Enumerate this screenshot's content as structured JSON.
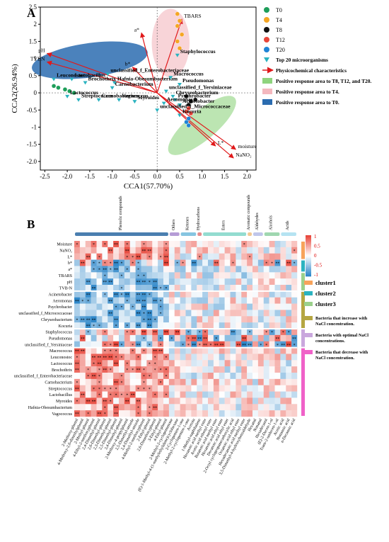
{
  "figure": {
    "panel_a_letter": "A",
    "panel_b_letter": "B"
  },
  "chart_data": [
    {
      "type": "scatter",
      "panel": "A",
      "xlabel": "CCA1(57.70%)",
      "ylabel": "CCA2(26.94%)",
      "xlim": [
        -2.6,
        2.2
      ],
      "ylim": [
        -2.25,
        2.5
      ],
      "xticks": [
        -2.5,
        -2.0,
        -1.5,
        -1.0,
        -0.5,
        0.0,
        0.5,
        1.0,
        1.5,
        2.0
      ],
      "yticks": [
        -2.0,
        -1.5,
        -1.0,
        -0.5,
        0.0,
        0.5,
        1.0,
        1.5,
        2.0,
        2.5
      ],
      "x_tick_labels": [
        "-2.5",
        "-2.0",
        "-1.5",
        "-1.0",
        "-0.5",
        "0.0",
        "0.5",
        "1.0",
        "1.5",
        "2.0"
      ],
      "y_tick_labels": [
        "-2.0",
        "-1.5",
        "-1",
        "-0.5",
        "0",
        "0.5",
        "1",
        "1.5",
        "2",
        "2.5"
      ],
      "ellipses": [
        {
          "name": "Positive response area to T4.",
          "color": "#f4b8be",
          "cx": 0.3,
          "cy": 1.45,
          "rx": 0.42,
          "ry": 1.0,
          "angle": 0
        },
        {
          "name": "Positive response area to T0.",
          "color": "#2b6cb0",
          "cx": -1.5,
          "cy": 0.95,
          "rx": 1.3,
          "ry": 0.5,
          "angle": -8
        },
        {
          "name": "Positive response area to T8, T12, and T20.",
          "color": "#8fd47e",
          "cx": 1.0,
          "cy": -0.95,
          "rx": 0.95,
          "ry": 0.42,
          "angle": -40
        }
      ],
      "sample_points": [
        {
          "group": "T0",
          "color": "#1e9e5a",
          "points": [
            [
              -2.3,
              0.2
            ],
            [
              -2.05,
              0.1
            ],
            [
              -1.95,
              0.05
            ],
            [
              -2.2,
              0.15
            ],
            [
              -1.85,
              0.0
            ]
          ]
        },
        {
          "group": "T4",
          "color": "#f5a623",
          "points": [
            [
              0.45,
              2.3
            ],
            [
              0.5,
              2.1
            ],
            [
              0.45,
              1.95
            ],
            [
              0.55,
              1.7
            ],
            [
              0.45,
              1.5
            ],
            [
              0.5,
              1.3
            ]
          ]
        },
        {
          "group": "T8",
          "color": "#111111",
          "points": [
            [
              0.65,
              -0.1
            ],
            [
              0.75,
              -0.25
            ],
            [
              0.7,
              -0.35
            ],
            [
              0.85,
              -0.2
            ]
          ]
        },
        {
          "group": "T12",
          "color": "#e8463a",
          "points": [
            [
              0.7,
              -0.45
            ],
            [
              0.65,
              -0.55
            ],
            [
              0.75,
              -0.6
            ]
          ]
        },
        {
          "group": "T20",
          "color": "#1f84d6",
          "points": [
            [
              0.7,
              -0.75
            ],
            [
              0.65,
              -0.85
            ],
            [
              0.7,
              -0.95
            ]
          ]
        }
      ],
      "microorganisms": [
        {
          "name": "Staphylococcus",
          "x": 0.45,
          "y": 1.1
        },
        {
          "name": "unclassified_f_Enterobacteriaceae",
          "x": -1.1,
          "y": 0.55
        },
        {
          "name": "Hafnia-Obesumbacterium",
          "x": -0.95,
          "y": 0.3
        },
        {
          "name": "Carnobacterium",
          "x": -1.0,
          "y": 0.15
        },
        {
          "name": "Lactobacillus",
          "x": -1.9,
          "y": 0.4
        },
        {
          "name": "Leuconostoc",
          "x": -2.3,
          "y": 0.4
        },
        {
          "name": "Brochothrix",
          "x": -1.6,
          "y": 0.3
        },
        {
          "name": "Lactococcus",
          "x": -2.0,
          "y": -0.1
        },
        {
          "name": "Streptococcus",
          "x": -1.75,
          "y": -0.2
        },
        {
          "name": "Carnobacterium",
          "x": -1.3,
          "y": -0.2
        },
        {
          "name": "Vagococcus",
          "x": -0.85,
          "y": -0.2
        },
        {
          "name": "Myroides",
          "x": -0.5,
          "y": -0.25
        },
        {
          "name": "Macrococcus",
          "x": 0.3,
          "y": 0.45
        },
        {
          "name": "Pseudomonas",
          "x": 0.5,
          "y": 0.25
        },
        {
          "name": "unclassified_f_Yersiniaceae",
          "x": 0.2,
          "y": 0.05
        },
        {
          "name": "Chryseobacterium",
          "x": 0.35,
          "y": -0.1
        },
        {
          "name": "Psychrobacter",
          "x": 0.4,
          "y": -0.2
        },
        {
          "name": "Aeromonas",
          "x": 0.15,
          "y": -0.3
        },
        {
          "name": "Acinetobacter",
          "x": 0.5,
          "y": -0.35
        },
        {
          "name": "unclassified_f_Micrococcaceae",
          "x": 0.0,
          "y": -0.5
        },
        {
          "name": "Kocuria",
          "x": 0.5,
          "y": -0.65
        }
      ],
      "physicochemical_arrows": [
        {
          "name": "TBARS",
          "x": 0.55,
          "y": 2.15
        },
        {
          "name": "a*",
          "x": -0.35,
          "y": 1.75
        },
        {
          "name": "b*",
          "x": -0.55,
          "y": 0.75
        },
        {
          "name": "pH",
          "x": -2.45,
          "y": 1.15
        },
        {
          "name": "TVBN",
          "x": -2.45,
          "y": 0.9
        },
        {
          "name": "L*",
          "x": 1.3,
          "y": -1.55
        },
        {
          "name": "moisture",
          "x": 1.75,
          "y": -1.65
        },
        {
          "name": "NaNO₂",
          "x": 1.7,
          "y": -1.9
        }
      ],
      "legend": {
        "placement": "right",
        "items": [
          {
            "label": "T0",
            "symbol": "circle",
            "color": "#1e9e5a"
          },
          {
            "label": "T4",
            "symbol": "circle",
            "color": "#f5a623"
          },
          {
            "label": "T8",
            "symbol": "circle",
            "color": "#111111"
          },
          {
            "label": "T12",
            "symbol": "circle",
            "color": "#e8463a"
          },
          {
            "label": "T20",
            "symbol": "circle",
            "color": "#1f84d6"
          },
          {
            "label": "Top 20 microorganisms",
            "symbol": "triangle",
            "color": "#2bb3c0"
          },
          {
            "label": "Physicochemical characteristics",
            "symbol": "arrow",
            "color": "#e0191b"
          },
          {
            "label": "Positive response area to T8, T12, and T20.",
            "symbol": "rect",
            "color": "#8fd47e"
          },
          {
            "label": "Positive response area to T4.",
            "symbol": "rect",
            "color": "#f4b8be"
          },
          {
            "label": "Positive response area to T0.",
            "symbol": "rect",
            "color": "#2b6cb0"
          }
        ]
      }
    },
    {
      "type": "heatmap",
      "panel": "B",
      "color_scale": {
        "min": -1,
        "max": 1,
        "ticks": [
          "1",
          "0.5",
          "0",
          "-0.5",
          "-1"
        ],
        "high_color": "#e8463a",
        "mid_color": "#ffffff",
        "low_color": "#2c86c9"
      },
      "column_groups": [
        {
          "name": "Phenolic compounds",
          "color": "#4a7fb0",
          "count": 17
        },
        {
          "name": "Others",
          "color": "#b59cd6",
          "count": 2
        },
        {
          "name": "Ketones",
          "color": "#86c5e0",
          "count": 3
        },
        {
          "name": "Hydrocarbons",
          "color": "#e58d8d",
          "count": 1
        },
        {
          "name": "Esters",
          "color": "#93dcd0",
          "count": 8
        },
        {
          "name": "Aromatic compounds",
          "color": "#f2c992",
          "count": 1
        },
        {
          "name": "Aldehydes",
          "color": "#c0c6ea",
          "count": 2
        },
        {
          "name": "Alcohols",
          "color": "#9fd7b0",
          "count": 3
        },
        {
          "name": "Acids",
          "color": "#b5e3f2",
          "count": 3
        }
      ],
      "columns": [
        "2-Methoxy-phenol",
        "4-Methoxy-2,6-dimethylphenol",
        "2-Methyl-phenol",
        "4-Ethyl-2-methoxyphenol",
        "2,4-Dimethyl-phenol",
        "2,6-Dimethyl-phenol",
        "2,3-Dimethyl-phenol",
        "2,5-Dimethyl-phenol",
        "3,4-Dimethyl-phenol",
        "2-Methoxy-4-propylphenol",
        "2,5-Dimethyl-anisole",
        "2,4-Dimethyl-anisole",
        "4-Methyl-2-methoxyphenol",
        "2-Ethyl-phenol",
        "2,6-Dimethoxyphenol",
        "3-Ethyl-phenol",
        "4-Ethyl-phenol",
        "2-Methyl-2-cyclopentenone",
        "(E)-1-Methyl-4-(1-methylethylidene)cyclohexane",
        "2-Cyclopenten-1-one",
        "2-Methyl-2-cyclopenten-1-one",
        "Acetoin",
        "1-Methyl-naphthalene",
        "Hexanoic acid methyl ester",
        "Acetic acid ethenyl ester",
        "Butanoic acid methyl ester",
        "Hexanoic acid ethyl ester",
        "Decanoic acid ethyl ester",
        "2-Octyl cyclopropanecarboxylic acid",
        "Octanoic acid ethyl ester",
        "Hexadecanoic acid methyl ester",
        "3,5-Dimethyl-4-hydroxybenzaldehyde",
        "Hexanal",
        "Nonanal",
        "Hexadecanol",
        "(E)-2-Decen-1-ol",
        "Trans-2-undecen-1-ol",
        "Acetic acid",
        "Nonanoic acid",
        "n-Decanoic acid"
      ],
      "rows": [
        "Moisture",
        "NaNO₂",
        "L*",
        "b*",
        "a*",
        "TBARS",
        "pH",
        "TVB-N",
        "Acinetobacter",
        "Aeromonas",
        "Psychrobacter",
        "unclassified_f_Micrococcaceae",
        "Chryseobacterium",
        "Kocuria",
        "Staphylococcus",
        "Pseudomonas",
        "unclassified_f_Yersiniaceae",
        "Macrococcus",
        "Leuconostoc",
        "Lactococcus",
        "Brochothrix",
        "unclassified_f_Enterobacteriaceae",
        "Carnobacterium",
        "Streptococcus",
        "Lactobacillus",
        "Myroides",
        "Hafnia-Obesumbacterium",
        "Vagococcus"
      ],
      "row_groups": [
        {
          "name": "cluster1",
          "color": "#f7a35b",
          "rows": 3
        },
        {
          "name": "cluster2",
          "color": "#2bb3c0",
          "rows": 2
        },
        {
          "name": "cluster3",
          "color": "#9bd08b",
          "rows": 3
        },
        {
          "name": "Bacteria that increase with NaCl concentration.",
          "color": "#b5a642",
          "rows": 6
        },
        {
          "name": "Bacteria with optimal NaCl concentrations.",
          "color": "#c9a7dd",
          "rows": 3
        },
        {
          "name": "Bacteria that decrease with NaCl concentration.",
          "color": "#f061c8",
          "rows": 11
        }
      ]
    }
  ],
  "legend_b": {
    "clusters": [
      "cluster1",
      "cluster2",
      "cluster3"
    ],
    "bacteria": [
      "Bacteria that increase with NaCl concentration.",
      "Bacteria with optimal NaCl concentrations.",
      "Bacteria that decrease with NaCl concentration."
    ]
  }
}
